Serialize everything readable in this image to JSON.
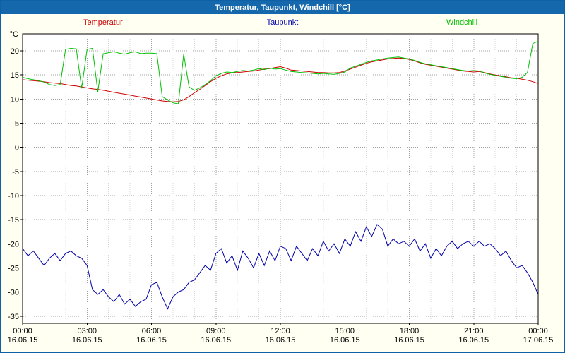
{
  "window": {
    "title": "Temperatur, Taupunkt, Windchill [°C]"
  },
  "colors": {
    "title_bar": "#1568ac",
    "title_text": "#ffffff",
    "background": "#fffff2",
    "plot_background": "#ffffff",
    "axis": "#000000",
    "grid_major": "#a0a0a0",
    "grid_minor": "#d8d8d8"
  },
  "chart_data": {
    "type": "line",
    "title": "Temperatur, Taupunkt, Windchill [°C]",
    "ylabel": "°C",
    "ylim": [
      -36.5,
      23.5
    ],
    "yticks": [
      20,
      15,
      10,
      5,
      0,
      -5,
      -10,
      -15,
      -20,
      -25,
      -30,
      -35
    ],
    "x_hours_range": [
      0,
      24
    ],
    "x_step_hours": 0.25,
    "grid": true,
    "legend_position": "top",
    "xticks": [
      {
        "hour": 0,
        "time": "00:00",
        "date": "16.06.15"
      },
      {
        "hour": 3,
        "time": "03:00",
        "date": "16.06.15"
      },
      {
        "hour": 6,
        "time": "06:00",
        "date": "16.06.15"
      },
      {
        "hour": 9,
        "time": "09:00",
        "date": "16.06.15"
      },
      {
        "hour": 12,
        "time": "12:00",
        "date": "16.06.15"
      },
      {
        "hour": 15,
        "time": "15:00",
        "date": "16.06.15"
      },
      {
        "hour": 18,
        "time": "18:00",
        "date": "16.06.15"
      },
      {
        "hour": 21,
        "time": "21:00",
        "date": "16.06.15"
      },
      {
        "hour": 24,
        "time": "00:00",
        "date": "17.06.15"
      }
    ],
    "series": [
      {
        "name": "Temperatur",
        "color": "#cc0000",
        "values": [
          14.0,
          13.9,
          13.8,
          13.7,
          13.6,
          13.4,
          13.3,
          13.2,
          13.0,
          12.8,
          12.7,
          12.5,
          12.3,
          12.1,
          12.0,
          11.8,
          11.6,
          11.4,
          11.2,
          11.0,
          10.8,
          10.6,
          10.4,
          10.2,
          10.0,
          9.8,
          9.6,
          9.5,
          9.4,
          9.5,
          9.8,
          10.5,
          11.3,
          12.0,
          12.8,
          13.6,
          14.3,
          14.8,
          15.2,
          15.4,
          15.5,
          15.6,
          15.7,
          15.8,
          16.0,
          16.2,
          16.3,
          16.5,
          16.7,
          16.4,
          16.0,
          15.9,
          15.8,
          15.7,
          15.6,
          15.5,
          15.5,
          15.4,
          15.4,
          15.5,
          15.8,
          16.2,
          16.6,
          17.0,
          17.4,
          17.7,
          17.9,
          18.1,
          18.3,
          18.4,
          18.5,
          18.4,
          18.2,
          17.9,
          17.5,
          17.2,
          17.0,
          16.8,
          16.6,
          16.4,
          16.2,
          16.0,
          15.8,
          15.7,
          15.6,
          15.7,
          15.5,
          15.2,
          15.0,
          14.8,
          14.6,
          14.4,
          14.3,
          14.1,
          13.9,
          13.6,
          13.2
        ]
      },
      {
        "name": "Taupunkt",
        "color": "#0000aa",
        "values": [
          -21.0,
          -22.5,
          -21.5,
          -23.0,
          -24.5,
          -23.0,
          -22.0,
          -23.5,
          -22.0,
          -21.5,
          -22.5,
          -23.0,
          -24.5,
          -29.5,
          -30.5,
          -29.5,
          -31.0,
          -32.0,
          -30.5,
          -32.5,
          -31.5,
          -33.0,
          -32.0,
          -31.5,
          -28.5,
          -28.0,
          -31.0,
          -33.5,
          -31.0,
          -30.0,
          -29.5,
          -28.0,
          -27.5,
          -26.0,
          -24.5,
          -25.5,
          -22.0,
          -21.0,
          -24.0,
          -22.5,
          -25.5,
          -21.5,
          -23.0,
          -25.0,
          -22.0,
          -24.5,
          -21.5,
          -23.5,
          -20.5,
          -21.0,
          -23.5,
          -20.5,
          -22.0,
          -23.5,
          -21.0,
          -22.5,
          -19.5,
          -21.5,
          -20.0,
          -22.0,
          -19.0,
          -20.5,
          -17.5,
          -19.5,
          -16.5,
          -18.5,
          -16.0,
          -17.0,
          -20.5,
          -19.0,
          -20.0,
          -19.5,
          -20.5,
          -19.0,
          -21.5,
          -20.0,
          -23.0,
          -21.0,
          -22.5,
          -20.5,
          -19.5,
          -21.0,
          -20.0,
          -19.5,
          -20.5,
          -19.5,
          -20.5,
          -20.0,
          -21.0,
          -22.5,
          -21.5,
          -23.5,
          -25.0,
          -24.5,
          -26.0,
          -28.0,
          -30.5
        ]
      },
      {
        "name": "Windchill",
        "color": "#00c000",
        "values": [
          14.5,
          14.2,
          14.0,
          13.8,
          13.5,
          13.0,
          12.8,
          13.0,
          20.3,
          20.5,
          20.4,
          12.2,
          20.3,
          20.5,
          11.5,
          19.4,
          19.6,
          19.8,
          19.5,
          19.3,
          19.6,
          19.8,
          19.4,
          19.5,
          19.5,
          19.4,
          10.5,
          9.8,
          9.2,
          9.0,
          19.3,
          12.5,
          11.8,
          12.3,
          13.0,
          13.8,
          14.8,
          15.3,
          15.6,
          15.5,
          15.7,
          15.9,
          15.8,
          16.0,
          16.3,
          16.1,
          16.4,
          16.2,
          16.3,
          16.0,
          15.7,
          15.6,
          15.5,
          15.4,
          15.3,
          15.2,
          15.3,
          15.2,
          15.1,
          15.3,
          15.6,
          16.4,
          16.8,
          17.2,
          17.6,
          17.9,
          18.1,
          18.3,
          18.5,
          18.6,
          18.7,
          18.5,
          18.3,
          18.0,
          17.6,
          17.3,
          17.1,
          16.9,
          16.7,
          16.5,
          16.3,
          16.1,
          15.9,
          15.8,
          15.9,
          15.8,
          15.4,
          15.1,
          14.9,
          14.7,
          14.5,
          14.3,
          14.2,
          14.5,
          15.5,
          21.5,
          22.0
        ]
      }
    ]
  }
}
